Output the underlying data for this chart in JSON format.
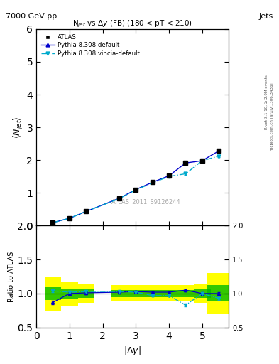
{
  "title_main": "7000 GeV pp",
  "title_right": "Jets",
  "plot_title": "N$_{jet}$ vs $\\Delta y$ (FB) (180 < pT < 210)",
  "watermark": "ATLAS_2011_S9126244",
  "xlabel": "|$\\Delta y$|",
  "ylabel_main": "$\\langle N_{jet}\\rangle$",
  "ylabel_ratio": "Ratio to ATLAS",
  "right_label": "Rivet 3.1.10, ≥ 2.9M events",
  "right_label2": "mcplots.cern.ch [arXiv:1306.3436]",
  "atlas_x": [
    0.5,
    1.0,
    1.5,
    2.5,
    3.0,
    3.5,
    4.0,
    4.5,
    5.0,
    5.5
  ],
  "atlas_y": [
    0.09,
    0.22,
    0.43,
    0.83,
    1.1,
    1.32,
    1.52,
    1.91,
    1.98,
    2.28
  ],
  "atlas_yerr": [
    0.005,
    0.008,
    0.012,
    0.02,
    0.025,
    0.03,
    0.035,
    0.04,
    0.04,
    0.05
  ],
  "pythia_default_x": [
    0.5,
    1.0,
    1.5,
    2.5,
    3.0,
    3.5,
    4.0,
    4.5,
    5.0,
    5.5
  ],
  "pythia_default_y": [
    0.09,
    0.22,
    0.43,
    0.83,
    1.1,
    1.32,
    1.52,
    1.91,
    1.98,
    2.28
  ],
  "pythia_default_err": [
    0.003,
    0.005,
    0.008,
    0.015,
    0.018,
    0.022,
    0.026,
    0.03,
    0.03,
    0.04
  ],
  "pythia_vincia_x": [
    0.5,
    1.0,
    1.5,
    2.5,
    3.0,
    3.5,
    4.0,
    4.5,
    5.0,
    5.5
  ],
  "pythia_vincia_y": [
    0.09,
    0.22,
    0.43,
    0.82,
    1.09,
    1.3,
    1.5,
    1.58,
    1.98,
    2.12
  ],
  "pythia_vincia_err": [
    0.003,
    0.005,
    0.008,
    0.015,
    0.018,
    0.022,
    0.026,
    0.03,
    0.03,
    0.04
  ],
  "ratio_default_y": [
    0.87,
    1.0,
    1.01,
    1.02,
    1.03,
    1.02,
    1.02,
    1.05,
    1.0,
    1.0
  ],
  "ratio_default_err": [
    0.025,
    0.02,
    0.018,
    0.015,
    0.015,
    0.015,
    0.015,
    0.015,
    0.018,
    0.02
  ],
  "ratio_vincia_y": [
    1.04,
    1.02,
    1.03,
    1.03,
    1.02,
    0.97,
    0.97,
    0.83,
    1.0,
    0.93
  ],
  "ratio_vincia_err": [
    0.025,
    0.02,
    0.018,
    0.015,
    0.015,
    0.015,
    0.015,
    0.015,
    0.018,
    0.02
  ],
  "band_x_centers": [
    0.5,
    1.0,
    1.5,
    2.5,
    3.0,
    3.5,
    4.0,
    4.5,
    5.0,
    5.5
  ],
  "band_half_widths": [
    0.25,
    0.25,
    0.25,
    0.25,
    0.25,
    0.25,
    0.25,
    0.25,
    0.25,
    0.35
  ],
  "band_yellow_lo": [
    0.75,
    0.82,
    0.86,
    0.88,
    0.88,
    0.88,
    0.88,
    0.88,
    0.86,
    0.7
  ],
  "band_yellow_hi": [
    1.25,
    1.18,
    1.14,
    1.12,
    1.12,
    1.12,
    1.12,
    1.12,
    1.14,
    1.3
  ],
  "band_green_lo": [
    0.9,
    0.93,
    0.94,
    0.95,
    0.95,
    0.95,
    0.95,
    0.95,
    0.94,
    0.88
  ],
  "band_green_hi": [
    1.1,
    1.07,
    1.06,
    1.05,
    1.05,
    1.05,
    1.05,
    1.05,
    1.06,
    1.12
  ],
  "color_atlas": "#000000",
  "color_default": "#0000cc",
  "color_vincia": "#00aacc",
  "color_band_yellow": "#ffff00",
  "color_band_green": "#00bb00",
  "ylim_main": [
    0.0,
    6.0
  ],
  "ylim_ratio": [
    0.5,
    2.0
  ],
  "xlim": [
    0.0,
    5.8
  ]
}
